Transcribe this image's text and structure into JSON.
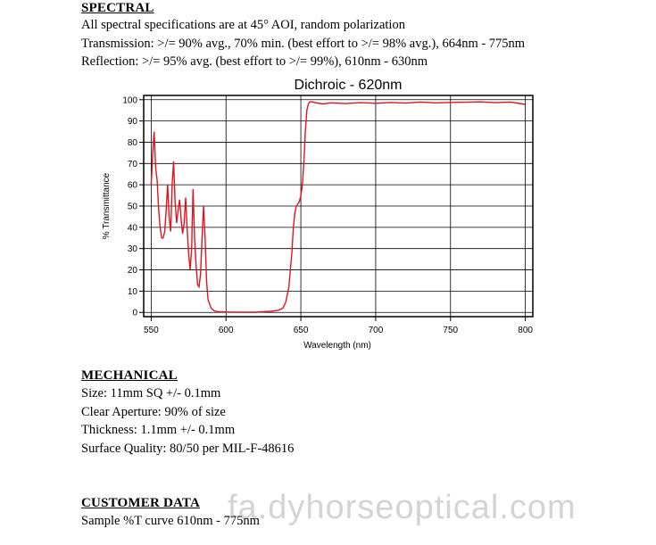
{
  "spectral": {
    "heading": "SPECTRAL",
    "lines": [
      "All spectral specifications are at 45° AOI, random polarization",
      "Transmission:  >/= 90% avg., 70% min. (best effort to >/= 98% avg.), 664nm - 775nm",
      "Reflection:  >/= 95% avg. (best effort to >/= 99%), 610nm - 630nm"
    ]
  },
  "chart_data": {
    "type": "line",
    "title": "Dichroic - 620nm",
    "xlabel": "Wavelength (nm)",
    "ylabel": "% Transmittance",
    "xlim": [
      545,
      805
    ],
    "ylim": [
      -2,
      102
    ],
    "xticks": [
      550,
      600,
      650,
      700,
      750,
      800
    ],
    "yticks": [
      0,
      10,
      20,
      30,
      40,
      50,
      60,
      70,
      80,
      90,
      100
    ],
    "grid": true,
    "series": [
      {
        "color": "#e0141e",
        "x": [
          550,
          551,
          552,
          553,
          554,
          555,
          556,
          557,
          558,
          559,
          560,
          561,
          562,
          563,
          564,
          565,
          566,
          567,
          568,
          569,
          570,
          571,
          572,
          573,
          574,
          575,
          576,
          577,
          578,
          579,
          580,
          581,
          582,
          583,
          584,
          585,
          586,
          587,
          588,
          590,
          592,
          595,
          600,
          605,
          610,
          620,
          630,
          635,
          638,
          640,
          642,
          643,
          644,
          645,
          646,
          647,
          648,
          649,
          650,
          651,
          652,
          653,
          654,
          655,
          656,
          658,
          660,
          665,
          670,
          680,
          690,
          700,
          710,
          720,
          730,
          740,
          750,
          760,
          770,
          780,
          790,
          800
        ],
        "y": [
          60,
          75,
          85,
          68,
          62,
          48,
          40,
          35,
          35,
          38,
          48,
          60,
          45,
          38,
          60,
          71,
          52,
          42,
          48,
          53,
          44,
          37,
          42,
          54,
          40,
          28,
          20,
          30,
          58,
          35,
          22,
          13,
          12,
          18,
          35,
          50,
          35,
          15,
          6,
          2,
          0.8,
          0.3,
          0.2,
          0.1,
          0.1,
          0.1,
          0.5,
          1,
          2,
          5,
          12,
          20,
          28,
          40,
          47,
          50,
          51,
          52,
          55,
          60,
          70,
          85,
          95,
          98,
          99,
          99,
          98.5,
          98,
          98.5,
          98.2,
          98.6,
          98.3,
          98.7,
          98.4,
          98.9,
          98.5,
          98.7,
          98.8,
          99,
          98.6,
          98.9,
          97.8
        ]
      }
    ]
  },
  "mechanical": {
    "heading": "MECHANICAL",
    "lines": [
      "Size: 11mm SQ +/- 0.1mm",
      "Clear Aperture:  90% of size",
      "Thickness: 1.1mm +/- 0.1mm",
      "Surface Quality: 80/50 per MIL-F-48616"
    ]
  },
  "customer": {
    "heading": "CUSTOMER DATA",
    "lines": [
      "Sample %T curve 610nm - 775nm"
    ]
  },
  "watermark": "fa.dyhorseoptical.com"
}
